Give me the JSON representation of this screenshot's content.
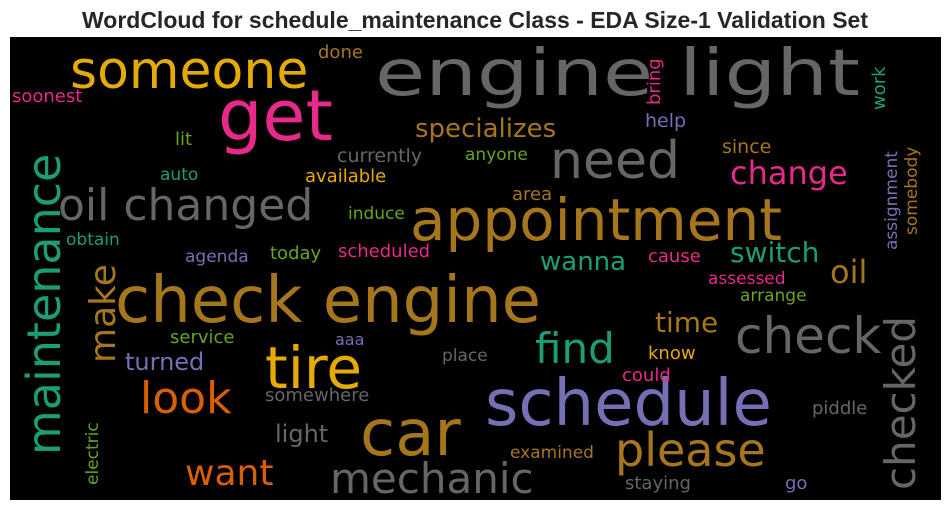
{
  "chart_data": {
    "type": "wordcloud",
    "title": "WordCloud for schedule_maintenance Class - EDA Size-1 Validation Set",
    "background": "#000000",
    "palette": [
      "#1b9e77",
      "#d95f02",
      "#7570b3",
      "#e7298a",
      "#66a61e",
      "#e6ab02",
      "#a6761d",
      "#666666"
    ],
    "words": [
      {
        "text": "engine light",
        "color": "#666666"
      },
      {
        "text": "someone",
        "color": "#e6ab02"
      },
      {
        "text": "get",
        "color": "#e7298a"
      },
      {
        "text": "maintenance",
        "color": "#1b9e77"
      },
      {
        "text": "need",
        "color": "#666666"
      },
      {
        "text": "appointment",
        "color": "#a6761d"
      },
      {
        "text": "oil changed",
        "color": "#666666"
      },
      {
        "text": "check engine",
        "color": "#a6761d"
      },
      {
        "text": "tire",
        "color": "#e6ab02"
      },
      {
        "text": "car",
        "color": "#a6761d"
      },
      {
        "text": "schedule",
        "color": "#7570b3"
      },
      {
        "text": "check",
        "color": "#666666"
      },
      {
        "text": "look",
        "color": "#d95f02"
      },
      {
        "text": "mechanic",
        "color": "#666666"
      },
      {
        "text": "please",
        "color": "#a6761d"
      },
      {
        "text": "find",
        "color": "#1b9e77"
      },
      {
        "text": "want",
        "color": "#d95f02"
      },
      {
        "text": "make",
        "color": "#a6761d"
      },
      {
        "text": "checked",
        "color": "#666666"
      },
      {
        "text": "specializes",
        "color": "#a6761d"
      },
      {
        "text": "change",
        "color": "#e7298a"
      },
      {
        "text": "switch",
        "color": "#1b9e77"
      },
      {
        "text": "oil",
        "color": "#a6761d"
      },
      {
        "text": "time",
        "color": "#a6761d"
      },
      {
        "text": "wanna",
        "color": "#1b9e77"
      },
      {
        "text": "turned",
        "color": "#7570b3"
      },
      {
        "text": "light",
        "color": "#666666"
      },
      {
        "text": "currently",
        "color": "#666666"
      },
      {
        "text": "soonest",
        "color": "#e7298a"
      },
      {
        "text": "done",
        "color": "#a6761d"
      },
      {
        "text": "bring",
        "color": "#e7298a"
      },
      {
        "text": "work",
        "color": "#1b9e77"
      },
      {
        "text": "lit",
        "color": "#66a61e"
      },
      {
        "text": "help",
        "color": "#7570b3"
      },
      {
        "text": "anyone",
        "color": "#66a61e"
      },
      {
        "text": "since",
        "color": "#a6761d"
      },
      {
        "text": "assignment",
        "color": "#7570b3"
      },
      {
        "text": "somebody",
        "color": "#a6761d"
      },
      {
        "text": "auto",
        "color": "#1b9e77"
      },
      {
        "text": "available",
        "color": "#e6ab02"
      },
      {
        "text": "area",
        "color": "#a6761d"
      },
      {
        "text": "induce",
        "color": "#66a61e"
      },
      {
        "text": "obtain",
        "color": "#1b9e77"
      },
      {
        "text": "agenda",
        "color": "#7570b3"
      },
      {
        "text": "today",
        "color": "#66a61e"
      },
      {
        "text": "scheduled",
        "color": "#e7298a"
      },
      {
        "text": "cause",
        "color": "#e7298a"
      },
      {
        "text": "assessed",
        "color": "#e7298a"
      },
      {
        "text": "arrange",
        "color": "#66a61e"
      },
      {
        "text": "service",
        "color": "#66a61e"
      },
      {
        "text": "aaa",
        "color": "#7570b3"
      },
      {
        "text": "place",
        "color": "#666666"
      },
      {
        "text": "know",
        "color": "#e6ab02"
      },
      {
        "text": "could",
        "color": "#e7298a"
      },
      {
        "text": "somewhere",
        "color": "#666666"
      },
      {
        "text": "piddle",
        "color": "#666666"
      },
      {
        "text": "electric",
        "color": "#66a61e"
      },
      {
        "text": "examined",
        "color": "#a6761d"
      },
      {
        "text": "staying",
        "color": "#666666"
      },
      {
        "text": "go",
        "color": "#7570b3"
      }
    ]
  }
}
